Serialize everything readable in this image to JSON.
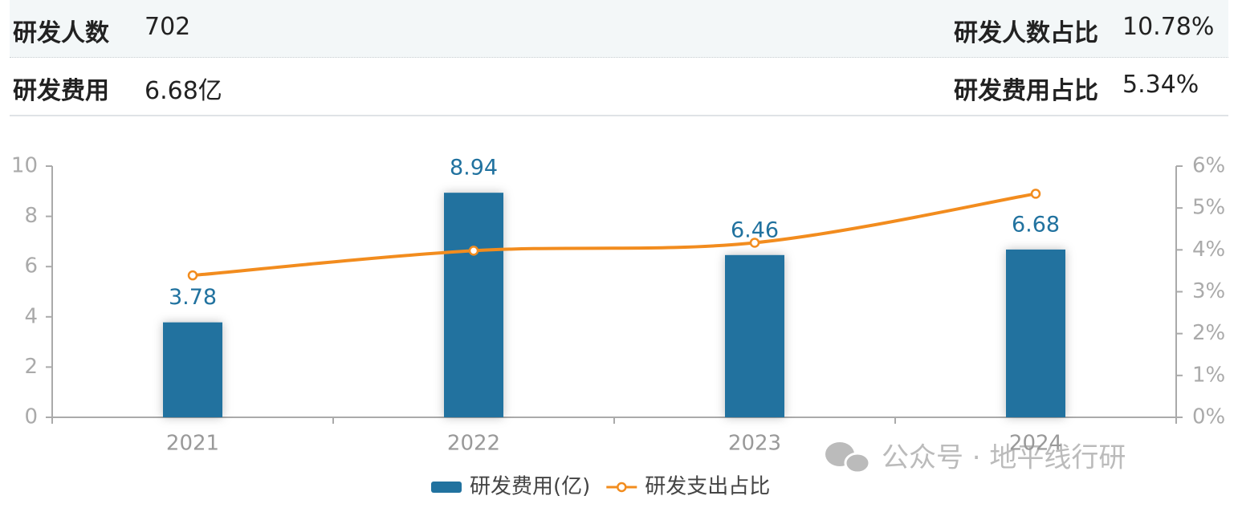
{
  "stats": [
    {
      "label": "研发人数",
      "value": "702"
    },
    {
      "label": "研发人数占比",
      "value": "10.78%"
    },
    {
      "label": "研发费用",
      "value": "6.68亿"
    },
    {
      "label": "研发费用占比",
      "value": "5.34%"
    }
  ],
  "chart_data": {
    "type": "bar",
    "categories": [
      "2021",
      "2022",
      "2023",
      "2024"
    ],
    "series": [
      {
        "name": "研发费用(亿)",
        "type": "bar",
        "color": "#21729f",
        "values": [
          3.78,
          8.94,
          6.46,
          6.68
        ]
      },
      {
        "name": "研发支出占比",
        "type": "line",
        "axis": "y2",
        "color": "#f28c1e",
        "values": [
          3.39,
          3.98,
          4.17,
          5.34
        ]
      }
    ],
    "ylim": [
      0,
      10
    ],
    "yticks": [
      0,
      2,
      4,
      6,
      8,
      10
    ],
    "y2lim": [
      0,
      6
    ],
    "y2ticks": [
      {
        "value": 0,
        "label": "0%"
      },
      {
        "value": 1,
        "label": "1%"
      },
      {
        "value": 2,
        "label": "2%"
      },
      {
        "value": 3,
        "label": "3%"
      },
      {
        "value": 4,
        "label": "4%"
      },
      {
        "value": 5,
        "label": "5%"
      },
      {
        "value": 6,
        "label": "6%"
      }
    ]
  },
  "watermark": "公众号 · 地平线行研"
}
